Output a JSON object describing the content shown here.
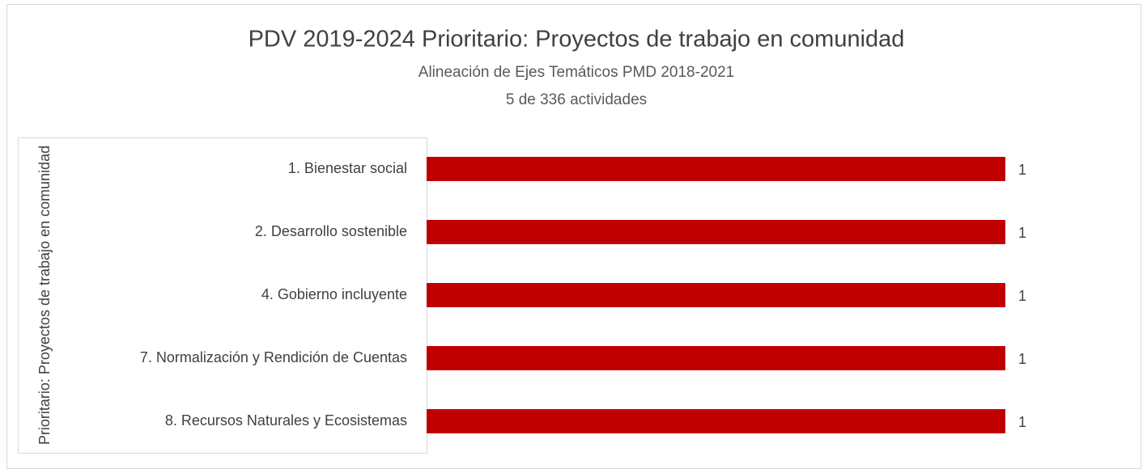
{
  "chart_data": {
    "type": "hbar",
    "title": "PDV 2019-2024 Prioritario: Proyectos de trabajo en comunidad",
    "subtitle": "Alineación de Ejes Temáticos PMD 2018-2021",
    "subtitle2": "5 de 336 actividades",
    "group_label": "Prioritario: Proyectos de trabajo en comunidad",
    "categories": [
      "1. Bienestar social",
      "2. Desarrollo sostenible",
      "4. Gobierno incluyente",
      "7. Normalización y Rendición de Cuentas",
      "8. Recursos Naturales y Ecosistemas"
    ],
    "values": [
      1,
      1,
      1,
      1,
      1
    ],
    "color": "#c00000",
    "xlim": [
      0,
      1.2
    ]
  }
}
